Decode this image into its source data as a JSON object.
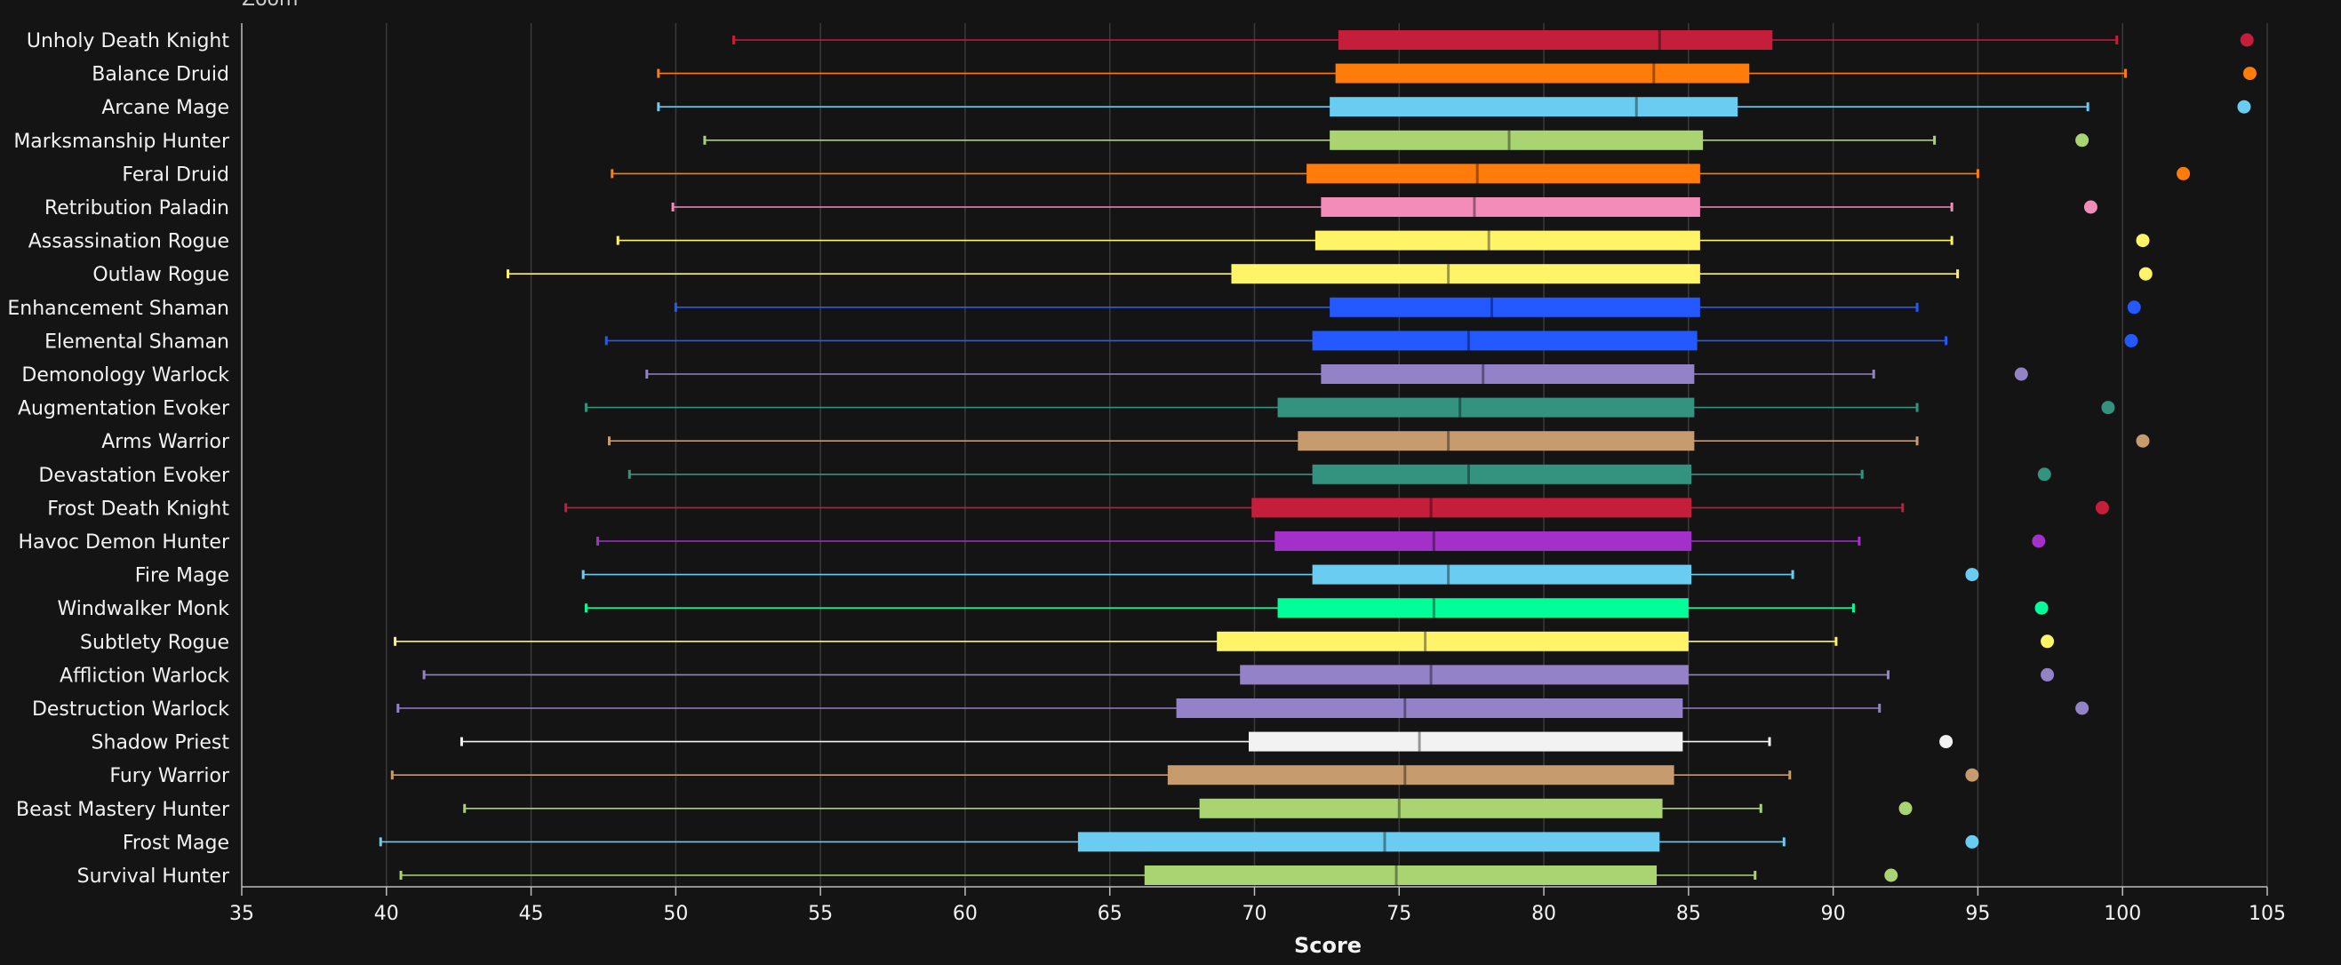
{
  "top_note": "Zoom",
  "chart_data": {
    "type": "boxplot",
    "orientation": "horizontal",
    "xlabel": "Score",
    "xlim": [
      35,
      105
    ],
    "xticks": [
      35,
      40,
      45,
      50,
      55,
      60,
      65,
      70,
      75,
      80,
      85,
      90,
      95,
      100,
      105
    ],
    "grid": true,
    "series": [
      {
        "name": "Unholy Death Knight",
        "color": "#C41E3A",
        "min": 52.0,
        "q1": 72.9,
        "median": 84.0,
        "q3": 87.9,
        "max": 99.8,
        "outlier": 104.3
      },
      {
        "name": "Balance Druid",
        "color": "#FF7C0A",
        "min": 49.4,
        "q1": 72.8,
        "median": 83.8,
        "q3": 87.1,
        "max": 100.1,
        "outlier": 104.4
      },
      {
        "name": "Arcane Mage",
        "color": "#69CCF0",
        "min": 49.4,
        "q1": 72.6,
        "median": 83.2,
        "q3": 86.7,
        "max": 98.8,
        "outlier": 104.2
      },
      {
        "name": "Marksmanship Hunter",
        "color": "#AAD372",
        "min": 51.0,
        "q1": 72.6,
        "median": 78.8,
        "q3": 85.5,
        "max": 93.5,
        "outlier": 98.6
      },
      {
        "name": "Feral Druid",
        "color": "#FF7C0A",
        "min": 47.8,
        "q1": 71.8,
        "median": 77.7,
        "q3": 85.4,
        "max": 95.0,
        "outlier": 102.1
      },
      {
        "name": "Retribution Paladin",
        "color": "#F48CBA",
        "min": 49.9,
        "q1": 72.3,
        "median": 77.6,
        "q3": 85.4,
        "max": 94.1,
        "outlier": 98.9
      },
      {
        "name": "Assassination Rogue",
        "color": "#FFF468",
        "min": 48.0,
        "q1": 72.1,
        "median": 78.1,
        "q3": 85.4,
        "max": 94.1,
        "outlier": 100.7
      },
      {
        "name": "Outlaw Rogue",
        "color": "#FFF468",
        "min": 44.2,
        "q1": 69.2,
        "median": 76.7,
        "q3": 85.4,
        "max": 94.3,
        "outlier": 100.8
      },
      {
        "name": "Enhancement Shaman",
        "color": "#2359FF",
        "min": 50.0,
        "q1": 72.6,
        "median": 78.2,
        "q3": 85.4,
        "max": 92.9,
        "outlier": 100.4
      },
      {
        "name": "Elemental Shaman",
        "color": "#2359FF",
        "min": 47.6,
        "q1": 72.0,
        "median": 77.4,
        "q3": 85.3,
        "max": 93.9,
        "outlier": 100.3
      },
      {
        "name": "Demonology Warlock",
        "color": "#9482C9",
        "min": 49.0,
        "q1": 72.3,
        "median": 77.9,
        "q3": 85.2,
        "max": 91.4,
        "outlier": 96.5
      },
      {
        "name": "Augmentation Evoker",
        "color": "#33937F",
        "min": 46.9,
        "q1": 70.8,
        "median": 77.1,
        "q3": 85.2,
        "max": 92.9,
        "outlier": 99.5
      },
      {
        "name": "Arms Warrior",
        "color": "#C69B6D",
        "min": 47.7,
        "q1": 71.5,
        "median": 76.7,
        "q3": 85.2,
        "max": 92.9,
        "outlier": 100.7
      },
      {
        "name": "Devastation Evoker",
        "color": "#33937F",
        "min": 48.4,
        "q1": 72.0,
        "median": 77.4,
        "q3": 85.1,
        "max": 91.0,
        "outlier": 97.3
      },
      {
        "name": "Frost Death Knight",
        "color": "#C41E3A",
        "min": 46.2,
        "q1": 69.9,
        "median": 76.1,
        "q3": 85.1,
        "max": 92.4,
        "outlier": 99.3
      },
      {
        "name": "Havoc Demon Hunter",
        "color": "#A330C9",
        "min": 47.3,
        "q1": 70.7,
        "median": 76.2,
        "q3": 85.1,
        "max": 90.9,
        "outlier": 97.1
      },
      {
        "name": "Fire Mage",
        "color": "#69CCF0",
        "min": 46.8,
        "q1": 72.0,
        "median": 76.7,
        "q3": 85.1,
        "max": 88.6,
        "outlier": 94.8
      },
      {
        "name": "Windwalker Monk",
        "color": "#00FF98",
        "min": 46.9,
        "q1": 70.8,
        "median": 76.2,
        "q3": 85.0,
        "max": 90.7,
        "outlier": 97.2
      },
      {
        "name": "Subtlety Rogue",
        "color": "#FFF468",
        "min": 40.3,
        "q1": 68.7,
        "median": 75.9,
        "q3": 85.0,
        "max": 90.1,
        "outlier": 97.4
      },
      {
        "name": "Affliction Warlock",
        "color": "#9482C9",
        "min": 41.3,
        "q1": 69.5,
        "median": 76.1,
        "q3": 85.0,
        "max": 91.9,
        "outlier": 97.4
      },
      {
        "name": "Destruction Warlock",
        "color": "#9482C9",
        "min": 40.4,
        "q1": 67.3,
        "median": 75.2,
        "q3": 84.8,
        "max": 91.6,
        "outlier": 98.6
      },
      {
        "name": "Shadow Priest",
        "color": "#F2F2F2",
        "min": 42.6,
        "q1": 69.8,
        "median": 75.7,
        "q3": 84.8,
        "max": 87.8,
        "outlier": 93.9
      },
      {
        "name": "Fury Warrior",
        "color": "#C69B6D",
        "min": 40.2,
        "q1": 67.0,
        "median": 75.2,
        "q3": 84.5,
        "max": 88.5,
        "outlier": 94.8
      },
      {
        "name": "Beast Mastery Hunter",
        "color": "#AAD372",
        "min": 42.7,
        "q1": 68.1,
        "median": 75.0,
        "q3": 84.1,
        "max": 87.5,
        "outlier": 92.5
      },
      {
        "name": "Frost Mage",
        "color": "#69CCF0",
        "min": 39.8,
        "q1": 63.9,
        "median": 74.5,
        "q3": 84.0,
        "max": 88.3,
        "outlier": 94.8
      },
      {
        "name": "Survival Hunter",
        "color": "#AAD372",
        "min": 40.5,
        "q1": 66.2,
        "median": 74.9,
        "q3": 83.9,
        "max": 87.3,
        "outlier": 92.0
      }
    ]
  }
}
